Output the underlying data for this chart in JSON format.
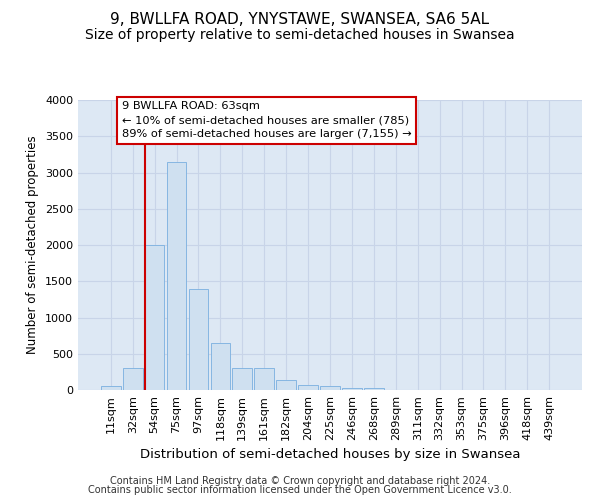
{
  "title": "9, BWLLFA ROAD, YNYSTAWE, SWANSEA, SA6 5AL",
  "subtitle": "Size of property relative to semi-detached houses in Swansea",
  "xlabel": "Distribution of semi-detached houses by size in Swansea",
  "ylabel": "Number of semi-detached properties",
  "footer1": "Contains HM Land Registry data © Crown copyright and database right 2024.",
  "footer2": "Contains public sector information licensed under the Open Government Licence v3.0.",
  "categories": [
    "11sqm",
    "32sqm",
    "54sqm",
    "75sqm",
    "97sqm",
    "118sqm",
    "139sqm",
    "161sqm",
    "182sqm",
    "204sqm",
    "225sqm",
    "246sqm",
    "268sqm",
    "289sqm",
    "311sqm",
    "332sqm",
    "353sqm",
    "375sqm",
    "396sqm",
    "418sqm",
    "439sqm"
  ],
  "values": [
    50,
    300,
    2000,
    3150,
    1400,
    650,
    300,
    300,
    140,
    70,
    50,
    30,
    30,
    5,
    3,
    2,
    1,
    1,
    0,
    0,
    0
  ],
  "bar_color": "#cfe0f0",
  "bar_edgecolor": "#7aafe0",
  "vline_color": "#cc0000",
  "vline_x_index": 2,
  "annotation_line1": "9 BWLLFA ROAD: 63sqm",
  "annotation_line2": "← 10% of semi-detached houses are smaller (785)",
  "annotation_line3": "89% of semi-detached houses are larger (7,155) →",
  "annotation_box_color": "white",
  "annotation_box_edgecolor": "#cc0000",
  "ylim": [
    0,
    4000
  ],
  "yticks": [
    0,
    500,
    1000,
    1500,
    2000,
    2500,
    3000,
    3500,
    4000
  ],
  "grid_color": "#c8d4e8",
  "background_color": "#dde8f4",
  "title_fontsize": 11,
  "subtitle_fontsize": 10,
  "xlabel_fontsize": 9.5,
  "ylabel_fontsize": 8.5,
  "tick_fontsize": 8,
  "footer_fontsize": 7
}
